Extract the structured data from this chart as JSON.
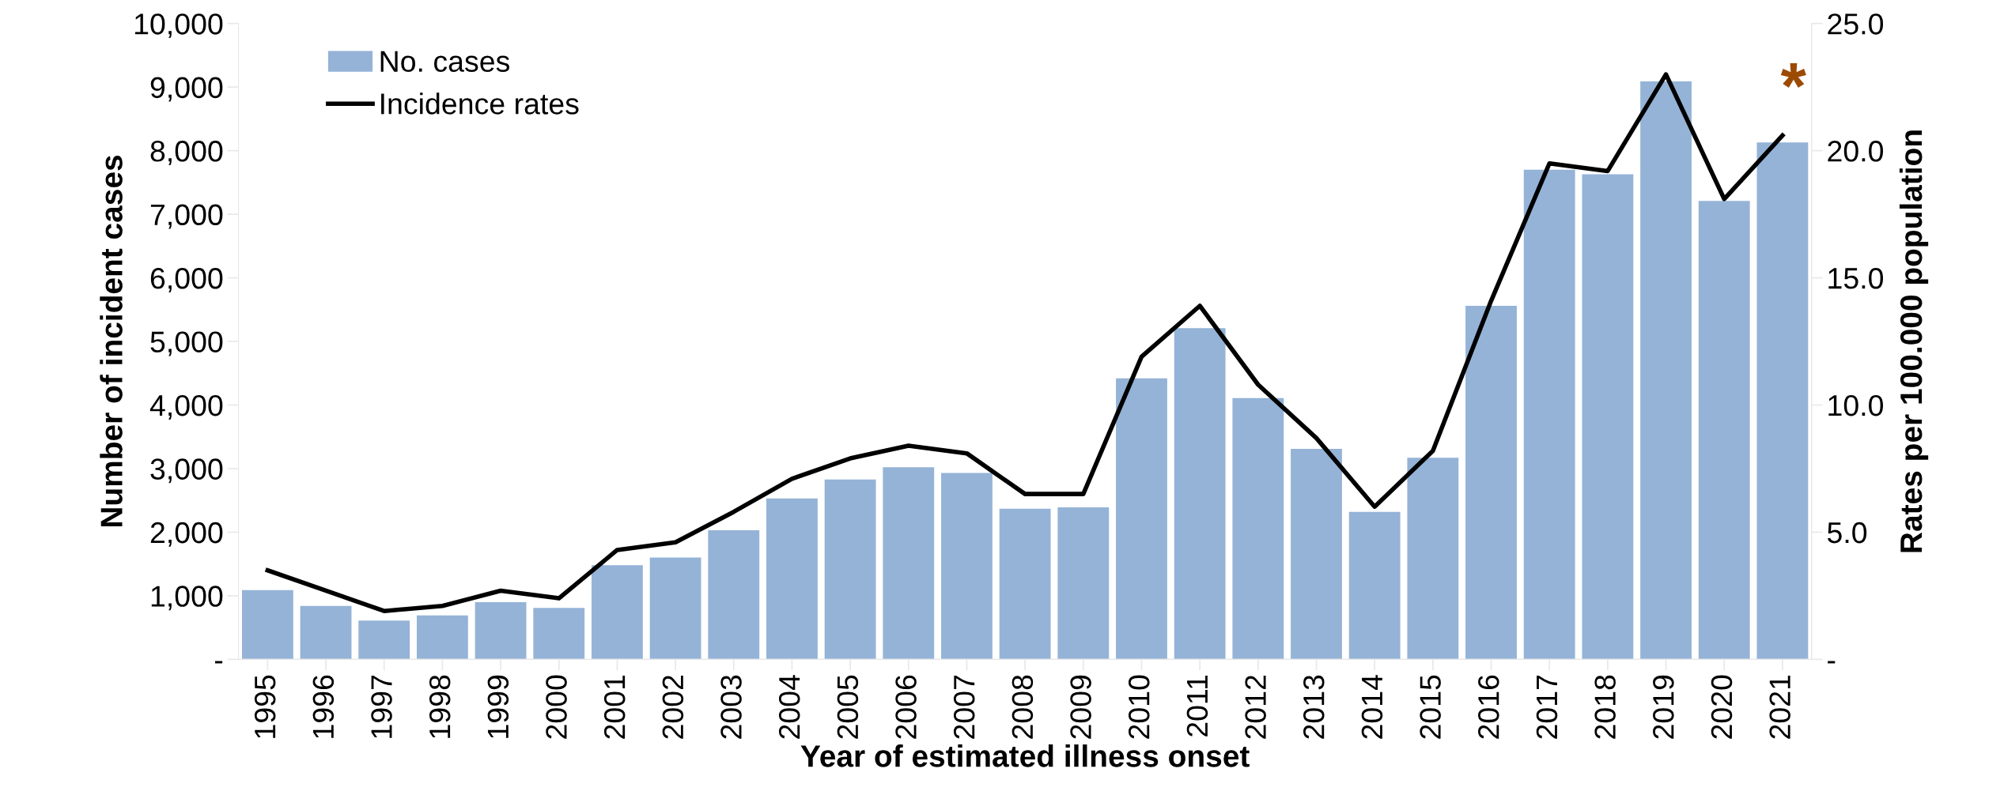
{
  "chart_data": {
    "type": "bar",
    "xlabel": "Year of estimated illness onset",
    "ylabel": "Number of incident cases",
    "y2label": "Rates per 100.000 population",
    "categories": [
      "1995",
      "1996",
      "1997",
      "1998",
      "1999",
      "2000",
      "2001",
      "2002",
      "2003",
      "2004",
      "2005",
      "2006",
      "2007",
      "2008",
      "2009",
      "2010",
      "2011",
      "2012",
      "2013",
      "2014",
      "2015",
      "2016",
      "2017",
      "2018",
      "2019",
      "2020",
      "2021"
    ],
    "series": [
      {
        "name": "No. cases",
        "color": "#95b3d7",
        "values": [
          1090,
          840,
          610,
          690,
          900,
          810,
          1480,
          1600,
          2030,
          2530,
          2830,
          3020,
          2930,
          2370,
          2390,
          4420,
          5210,
          4110,
          3310,
          2320,
          3170,
          5560,
          7700,
          7630,
          9090,
          7210,
          8130
        ]
      },
      {
        "name": "Incidence rates",
        "type": "line",
        "axis": "y2",
        "color": "#000000",
        "values": [
          3.5,
          2.7,
          1.9,
          2.1,
          2.7,
          2.4,
          4.3,
          4.6,
          5.8,
          7.1,
          7.9,
          8.4,
          8.1,
          6.5,
          6.5,
          11.9,
          13.9,
          10.8,
          8.7,
          6.0,
          8.2,
          14.1,
          19.5,
          19.2,
          23.0,
          18.1,
          20.6
        ]
      }
    ],
    "ylim": [
      0,
      10000
    ],
    "yticks": [
      {
        "value": 0,
        "label": "-"
      },
      {
        "value": 1000,
        "label": "1,000"
      },
      {
        "value": 2000,
        "label": "2,000"
      },
      {
        "value": 3000,
        "label": "3,000"
      },
      {
        "value": 4000,
        "label": "4,000"
      },
      {
        "value": 5000,
        "label": "5,000"
      },
      {
        "value": 6000,
        "label": "6,000"
      },
      {
        "value": 7000,
        "label": "7,000"
      },
      {
        "value": 8000,
        "label": "8,000"
      },
      {
        "value": 9000,
        "label": "9,000"
      },
      {
        "value": 10000,
        "label": "10,000"
      }
    ],
    "y2lim": [
      0,
      25
    ],
    "y2ticks": [
      {
        "value": 0,
        "label": "-"
      },
      {
        "value": 5,
        "label": "5.0"
      },
      {
        "value": 10,
        "label": "10.0"
      },
      {
        "value": 15,
        "label": "15.0"
      },
      {
        "value": 20,
        "label": "20.0"
      },
      {
        "value": 25,
        "label": "25.0"
      }
    ],
    "annotations": [
      "*"
    ],
    "legend": "top left",
    "grid": false
  }
}
